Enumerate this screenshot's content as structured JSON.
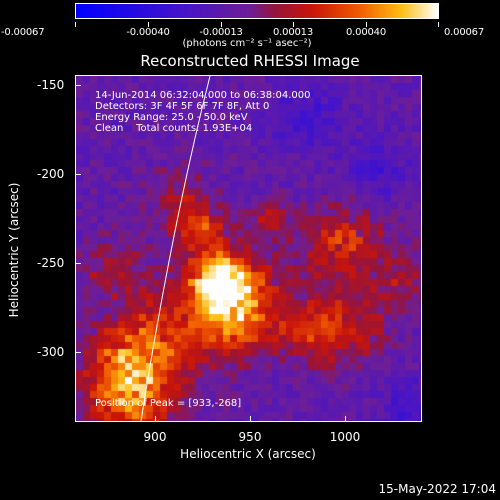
{
  "colorbar": {
    "ticks": [
      "-0.00067",
      "-0.00040",
      "-0.00013",
      "0.00013",
      "0.00040",
      "0.00067"
    ],
    "unit": "(photons cm⁻² s⁻¹ asec⁻²)"
  },
  "title": "Reconstructed RHESSI Image",
  "info": {
    "line1": "14-Jun-2014 06:32:04.000 to 06:38:04.000",
    "line2": "Detectors: 3F 4F 5F 6F 7F 8F, Att 0",
    "line3": "Energy Range: 25.0 - 50.0 keV",
    "line4": "Clean    Total counts: 1.93E+04",
    "peak": "Position of Peak = [933,-268]"
  },
  "axes": {
    "xlabel": "Heliocentric X (arcsec)",
    "ylabel": "Heliocentric Y (arcsec)",
    "xticks": [
      "900",
      "950",
      "1000"
    ],
    "yticks": [
      "-150",
      "-200",
      "-250",
      "-300"
    ],
    "xlim": [
      860,
      1040
    ],
    "ylim": [
      -340,
      -145
    ]
  },
  "footer": "15-May-2022 17:04",
  "colors": {
    "background": "#000000",
    "foreground": "#ffffff",
    "limb": "#ffffff"
  }
}
